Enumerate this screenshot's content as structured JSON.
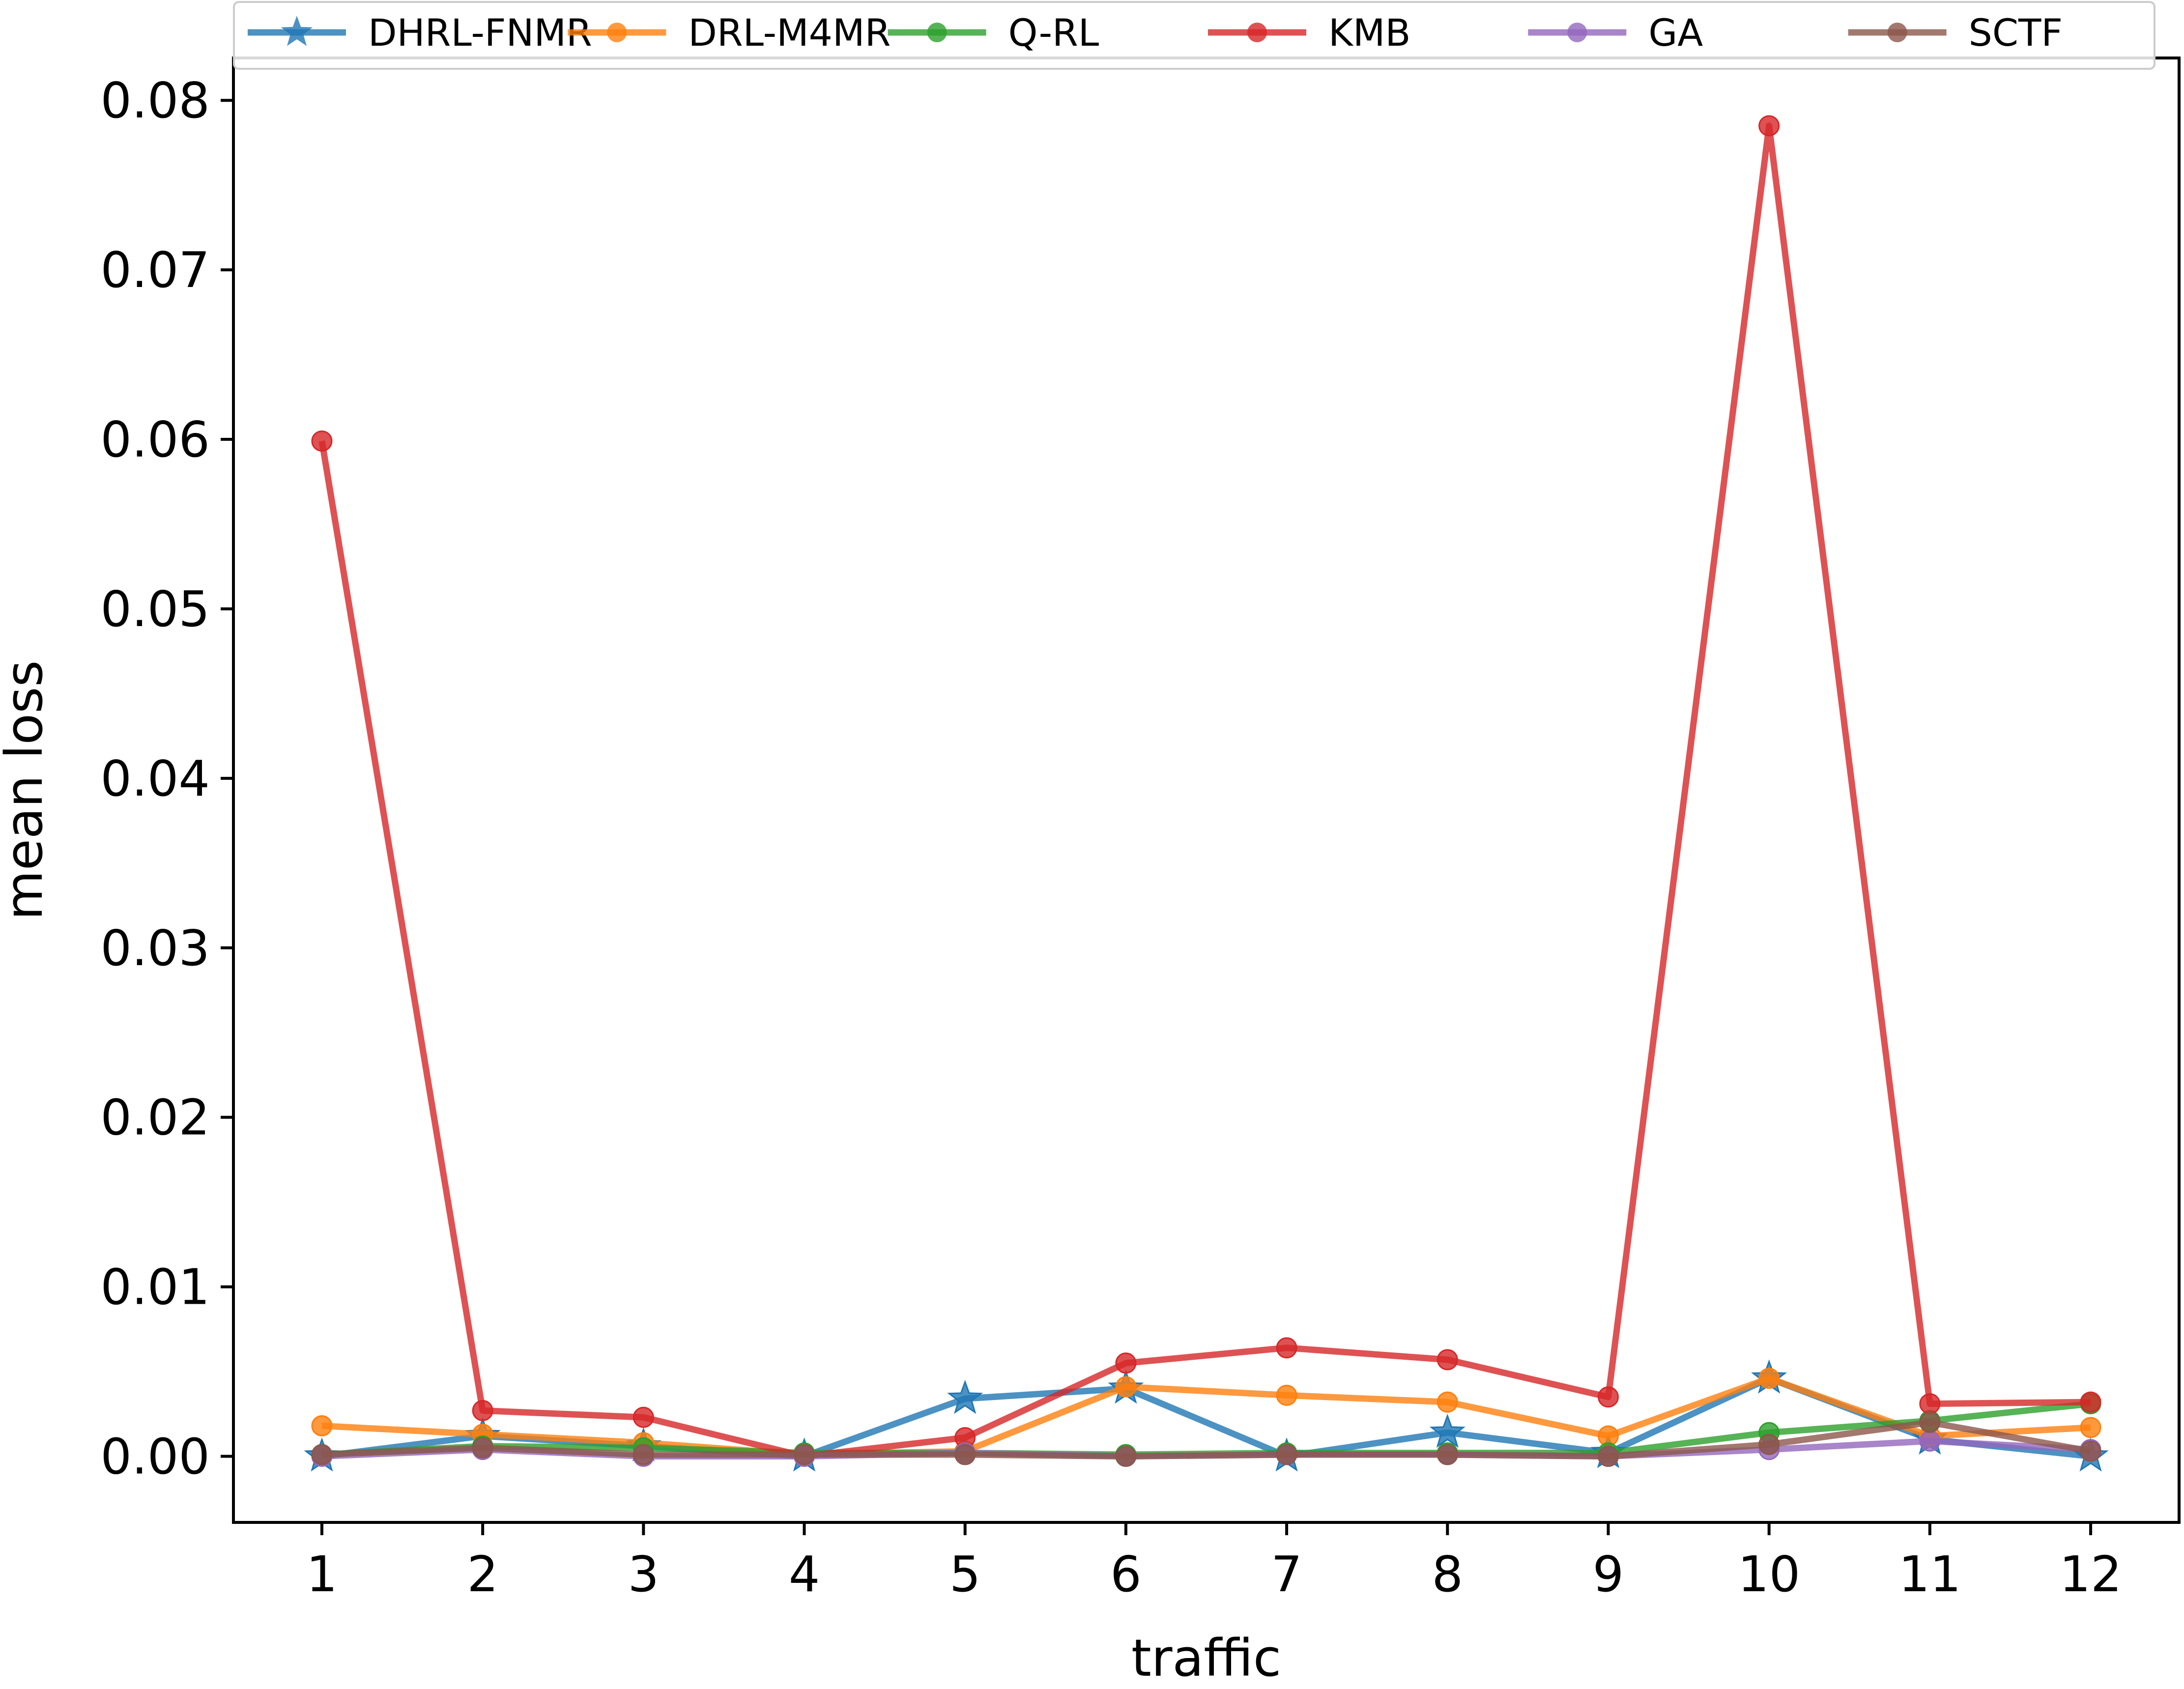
{
  "chart_data": {
    "type": "line",
    "xlabel": "traffic",
    "ylabel": "mean loss",
    "x": [
      1,
      2,
      3,
      4,
      5,
      6,
      7,
      8,
      9,
      10,
      11,
      12
    ],
    "xlim": [
      0.45,
      12.55
    ],
    "ylim": [
      -0.0039,
      0.0825
    ],
    "y_ticks": [
      0.0,
      0.01,
      0.02,
      0.03,
      0.04,
      0.05,
      0.06,
      0.07,
      0.08
    ],
    "y_tick_labels": [
      "0.00",
      "0.01",
      "0.02",
      "0.03",
      "0.04",
      "0.05",
      "0.06",
      "0.07",
      "0.08"
    ],
    "x_tick_labels": [
      "1",
      "2",
      "3",
      "4",
      "5",
      "6",
      "7",
      "8",
      "9",
      "10",
      "11",
      "12"
    ],
    "grid": false,
    "legend_position": "top",
    "series": [
      {
        "name": "DHRL-FNMR",
        "color": "#1f77b4",
        "marker": "star",
        "values": [
          0.0,
          0.0012,
          0.0006,
          0.0,
          0.0034,
          0.004,
          0.0,
          0.0014,
          0.0002,
          0.0046,
          0.001,
          0.0
        ]
      },
      {
        "name": "DRL-M4MR",
        "color": "#ff7f0e",
        "marker": "circle",
        "values": [
          0.0018,
          0.0013,
          0.0008,
          0.0001,
          0.0003,
          0.0041,
          0.0036,
          0.0032,
          0.0012,
          0.0046,
          0.0012,
          0.0017
        ]
      },
      {
        "name": "Q-RL",
        "color": "#2ca02c",
        "marker": "circle",
        "values": [
          0.0001,
          0.0006,
          0.0005,
          0.0002,
          0.0002,
          0.0001,
          0.0002,
          0.0002,
          0.0002,
          0.0014,
          0.0021,
          0.0031
        ]
      },
      {
        "name": "KMB",
        "color": "#d62728",
        "marker": "circle",
        "values": [
          0.0599,
          0.0027,
          0.0023,
          0.0,
          0.0011,
          0.0055,
          0.0064,
          0.0057,
          0.0035,
          0.0785,
          0.0031,
          0.0032
        ]
      },
      {
        "name": "GA",
        "color": "#9467bd",
        "marker": "circle",
        "values": [
          0.0,
          0.0004,
          0.0,
          0.0,
          0.0002,
          0.0,
          0.0001,
          0.0001,
          0.0,
          0.0004,
          0.0009,
          0.0004
        ]
      },
      {
        "name": "SCTF",
        "color": "#8c564b",
        "marker": "circle",
        "values": [
          0.0001,
          0.0005,
          0.0001,
          0.0001,
          0.0001,
          0.0,
          0.0001,
          0.0001,
          0.0,
          0.0007,
          0.002,
          0.0003
        ]
      }
    ]
  }
}
